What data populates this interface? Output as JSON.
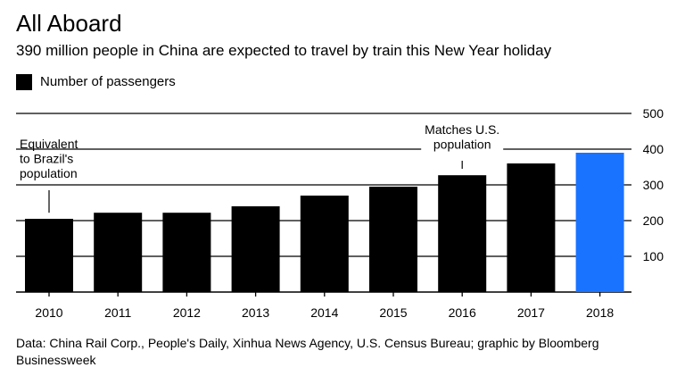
{
  "title": "All Aboard",
  "subtitle": "390 million people in China are expected to travel by train this New Year holiday",
  "source": "Data: China Rail Corp., People's Daily, Xinhua News Agency, U.S. Census Bureau; graphic by Bloomberg Businessweek",
  "colors": {
    "bar": "#000000",
    "highlight": "#1a73ff",
    "grid": "#000000",
    "background": "#ffffff"
  },
  "chart_data": {
    "type": "bar",
    "title": "All Aboard",
    "subtitle": "390 million people in China are expected to travel by train this New Year holiday",
    "xlabel": "",
    "ylabel": "",
    "categories": [
      "2010",
      "2011",
      "2012",
      "2013",
      "2014",
      "2015",
      "2016",
      "2017",
      "2018"
    ],
    "series": [
      {
        "name": "Number of passengers",
        "values": [
          205,
          222,
          222,
          240,
          270,
          295,
          327,
          360,
          390
        ]
      }
    ],
    "highlight_category": "2018",
    "ylim": [
      0,
      500
    ],
    "yticks": [
      100,
      200,
      300,
      400,
      500
    ],
    "grid": true,
    "legend": "top-left",
    "annotations": [
      {
        "text_lines": [
          "Equivalent",
          "to Brazil's",
          "population"
        ],
        "value": 207,
        "at_category": "2010"
      },
      {
        "text_lines": [
          "Matches U.S.",
          "population"
        ],
        "value": 400,
        "at_category": "2016"
      }
    ]
  }
}
